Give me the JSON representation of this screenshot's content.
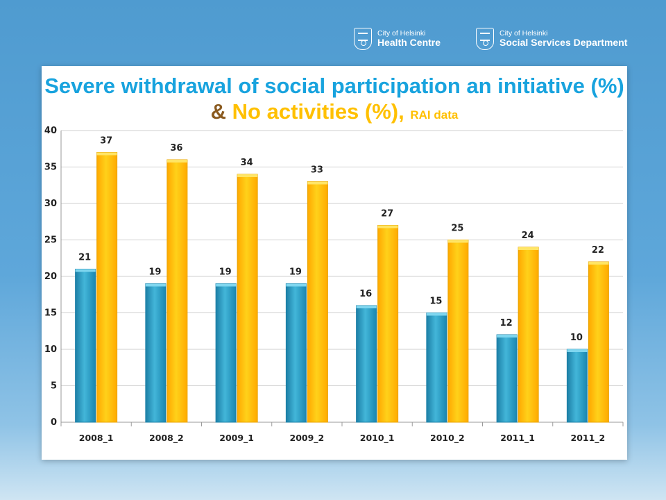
{
  "header": {
    "logos": [
      {
        "line1": "City of Helsinki",
        "line2": "Health Centre"
      },
      {
        "line1": "City of Helsinki",
        "line2": "Social Services Department"
      }
    ]
  },
  "title": {
    "part1": "Severe withdrawal of social participation an initiative (%)",
    "amp": "&",
    "part2": "No activities (%),",
    "part3": "RAI data"
  },
  "colors": {
    "series1": "#2a9cc2",
    "series2": "#ffbb00",
    "title_blue": "#18a3de",
    "title_orange": "#ffc000"
  },
  "chart_data": {
    "type": "bar",
    "categories": [
      "2008_1",
      "2008_2",
      "2009_1",
      "2009_2",
      "2010_1",
      "2010_2",
      "2011_1",
      "2011_2"
    ],
    "series": [
      {
        "values": [
          21,
          19,
          19,
          19,
          16,
          15,
          12,
          10
        ]
      },
      {
        "values": [
          37,
          36,
          34,
          33,
          27,
          25,
          24,
          22
        ]
      }
    ],
    "ylim": [
      0,
      40
    ],
    "yticks": [
      0,
      5,
      10,
      15,
      20,
      25,
      30,
      35,
      40
    ],
    "grid": true,
    "data_labels": true
  }
}
